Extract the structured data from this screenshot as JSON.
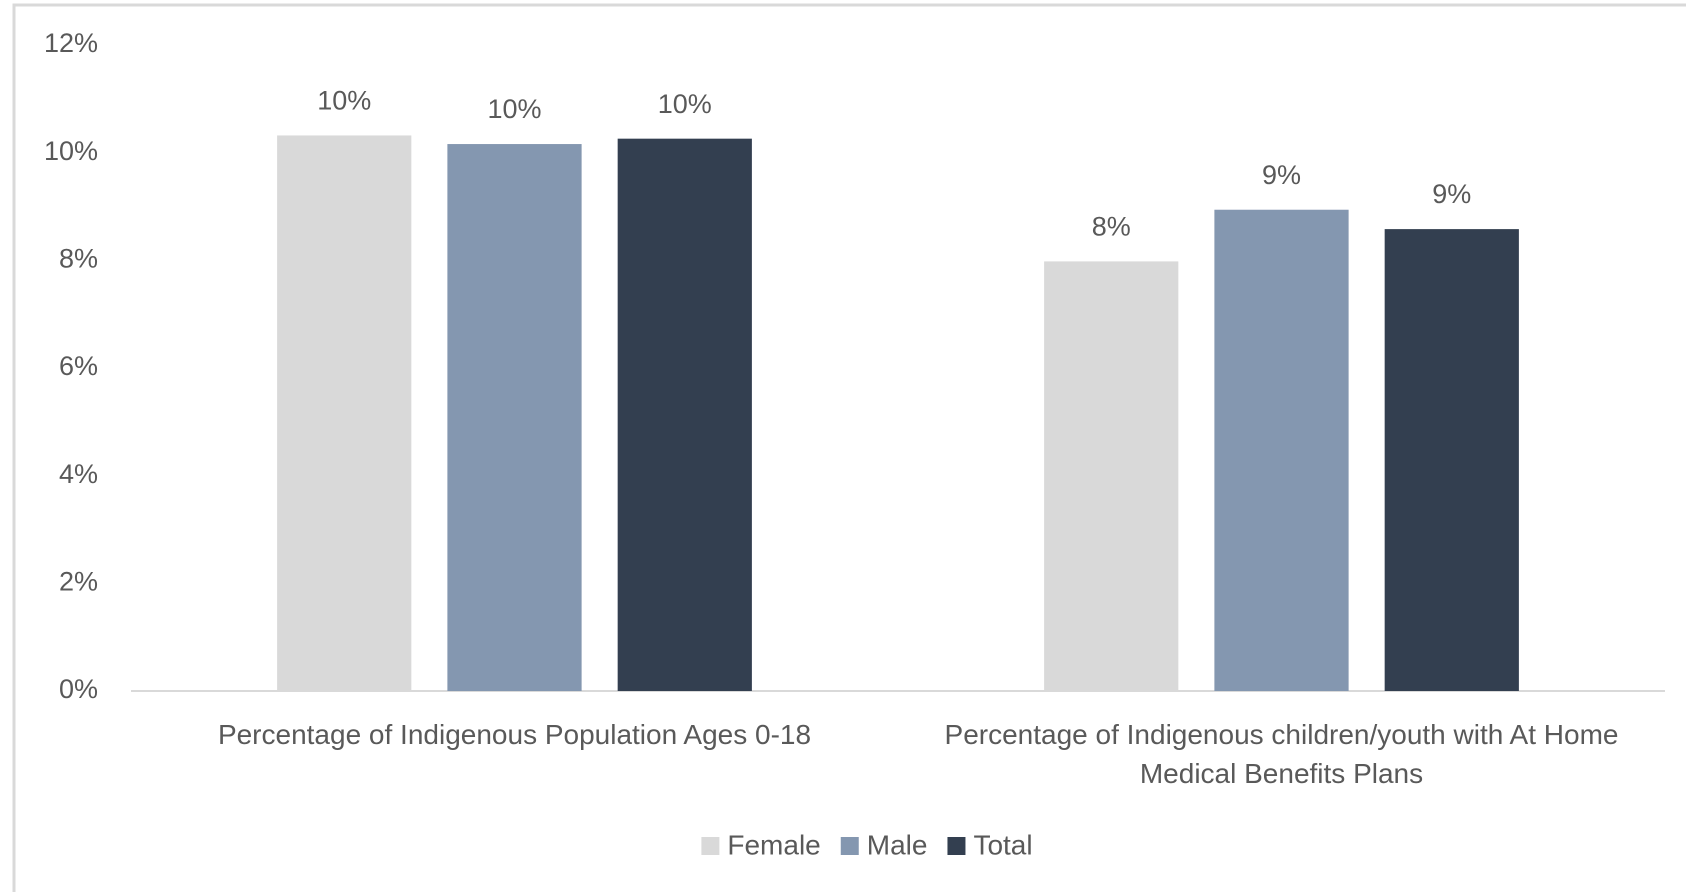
{
  "chart_data": {
    "type": "bar",
    "categories": [
      "Percentage of Indigenous Population Ages 0-18",
      "Percentage of Indigenous children/youth with At Home Medical Benefits Plans"
    ],
    "series": [
      {
        "name": "Female",
        "color": "#d9d9d9",
        "values": [
          10.32,
          7.98
        ],
        "value_labels": [
          "10%",
          "8%"
        ]
      },
      {
        "name": "Male",
        "color": "#8497b0",
        "values": [
          10.16,
          8.94
        ],
        "value_labels": [
          "10%",
          "9%"
        ]
      },
      {
        "name": "Total",
        "color": "#333f50",
        "values": [
          10.26,
          8.58
        ],
        "value_labels": [
          "10%",
          "9%"
        ]
      }
    ],
    "ylim": [
      0,
      12
    ],
    "yticks": [
      {
        "value": 0,
        "label": "0%"
      },
      {
        "value": 2,
        "label": "2%"
      },
      {
        "value": 4,
        "label": "4%"
      },
      {
        "value": 6,
        "label": "6%"
      },
      {
        "value": 8,
        "label": "8%"
      },
      {
        "value": 10,
        "label": "10%"
      },
      {
        "value": 12,
        "label": "12%"
      }
    ],
    "grid": false,
    "legend": "bottom"
  }
}
